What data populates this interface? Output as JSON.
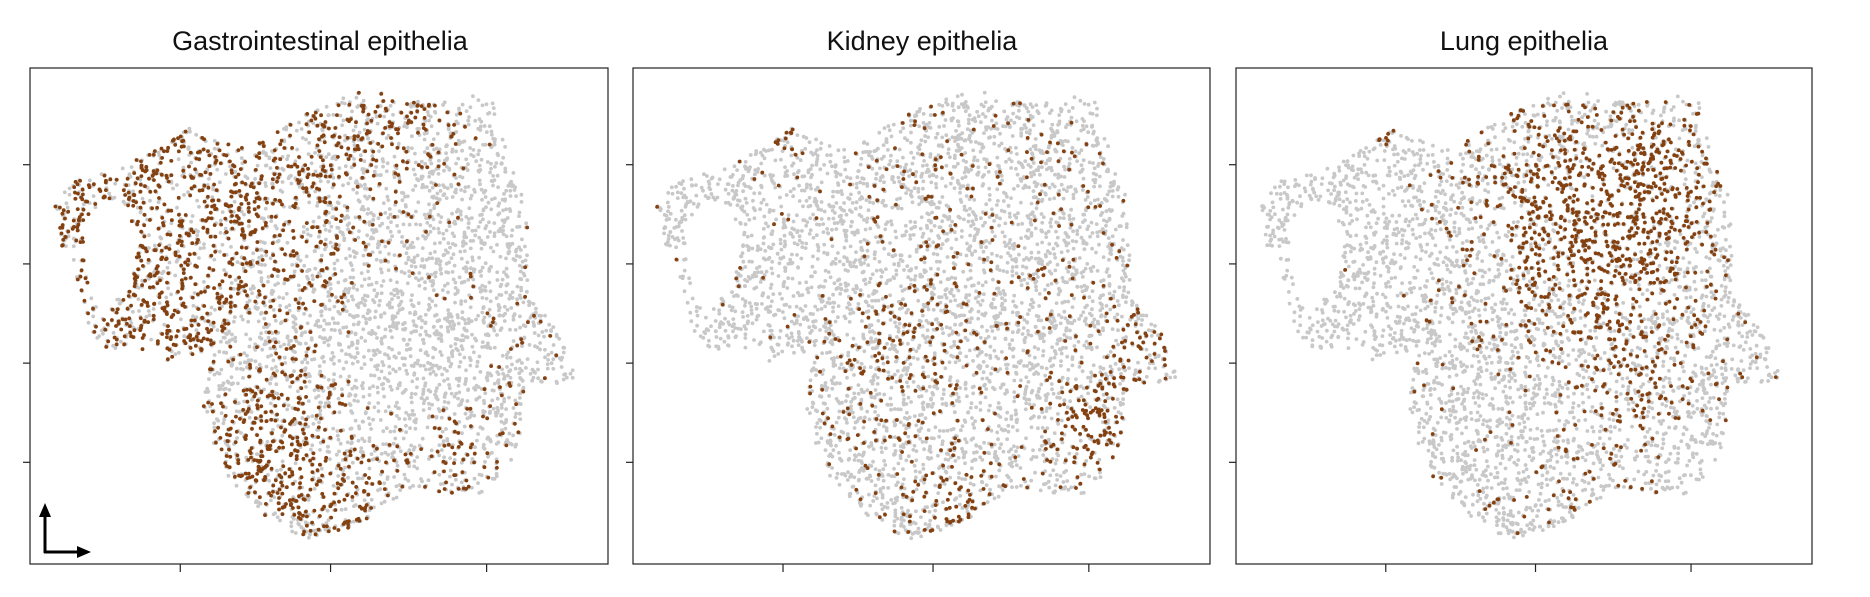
{
  "chart_data": [
    {
      "type": "scatter",
      "title": "Gastrointestinal epithelia",
      "xlabel": "",
      "ylabel": "",
      "grid": false,
      "legend": "none",
      "background_color": "#c8c8c8",
      "highlight_color": "#84400f",
      "highlight_region": "left-and-lower"
    },
    {
      "type": "scatter",
      "title": "Kidney epithelia",
      "xlabel": "",
      "ylabel": "",
      "grid": false,
      "legend": "none",
      "background_color": "#c8c8c8",
      "highlight_color": "#84400f",
      "highlight_region": "lower-right"
    },
    {
      "type": "scatter",
      "title": "Lung epithelia",
      "xlabel": "",
      "ylabel": "",
      "grid": false,
      "legend": "none",
      "background_color": "#c8c8c8",
      "highlight_color": "#84400f",
      "highlight_region": "upper-right"
    }
  ]
}
